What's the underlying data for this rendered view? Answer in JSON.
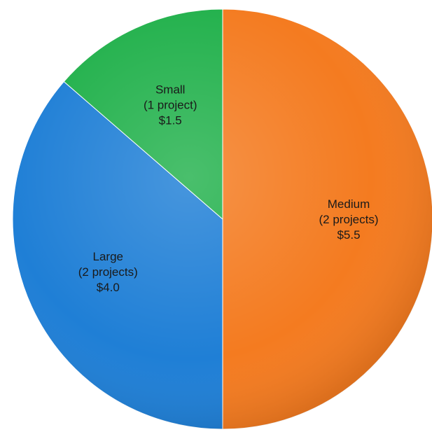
{
  "chart_data": {
    "type": "pie",
    "title": "",
    "legend": "none",
    "start_angle": "12 o'clock, clockwise",
    "slices": [
      {
        "category": "Medium",
        "count_text": "(2 projects)",
        "value_text": "$5.5",
        "value": 5.5,
        "color": "#F47B20"
      },
      {
        "category": "Large",
        "count_text": "(2 projects)",
        "value_text": "$4.0",
        "value": 4.0,
        "color": "#1F7FD6"
      },
      {
        "category": "Small",
        "count_text": "(1 project)",
        "value_text": "$1.5",
        "value": 1.5,
        "color": "#22B14C"
      }
    ]
  }
}
